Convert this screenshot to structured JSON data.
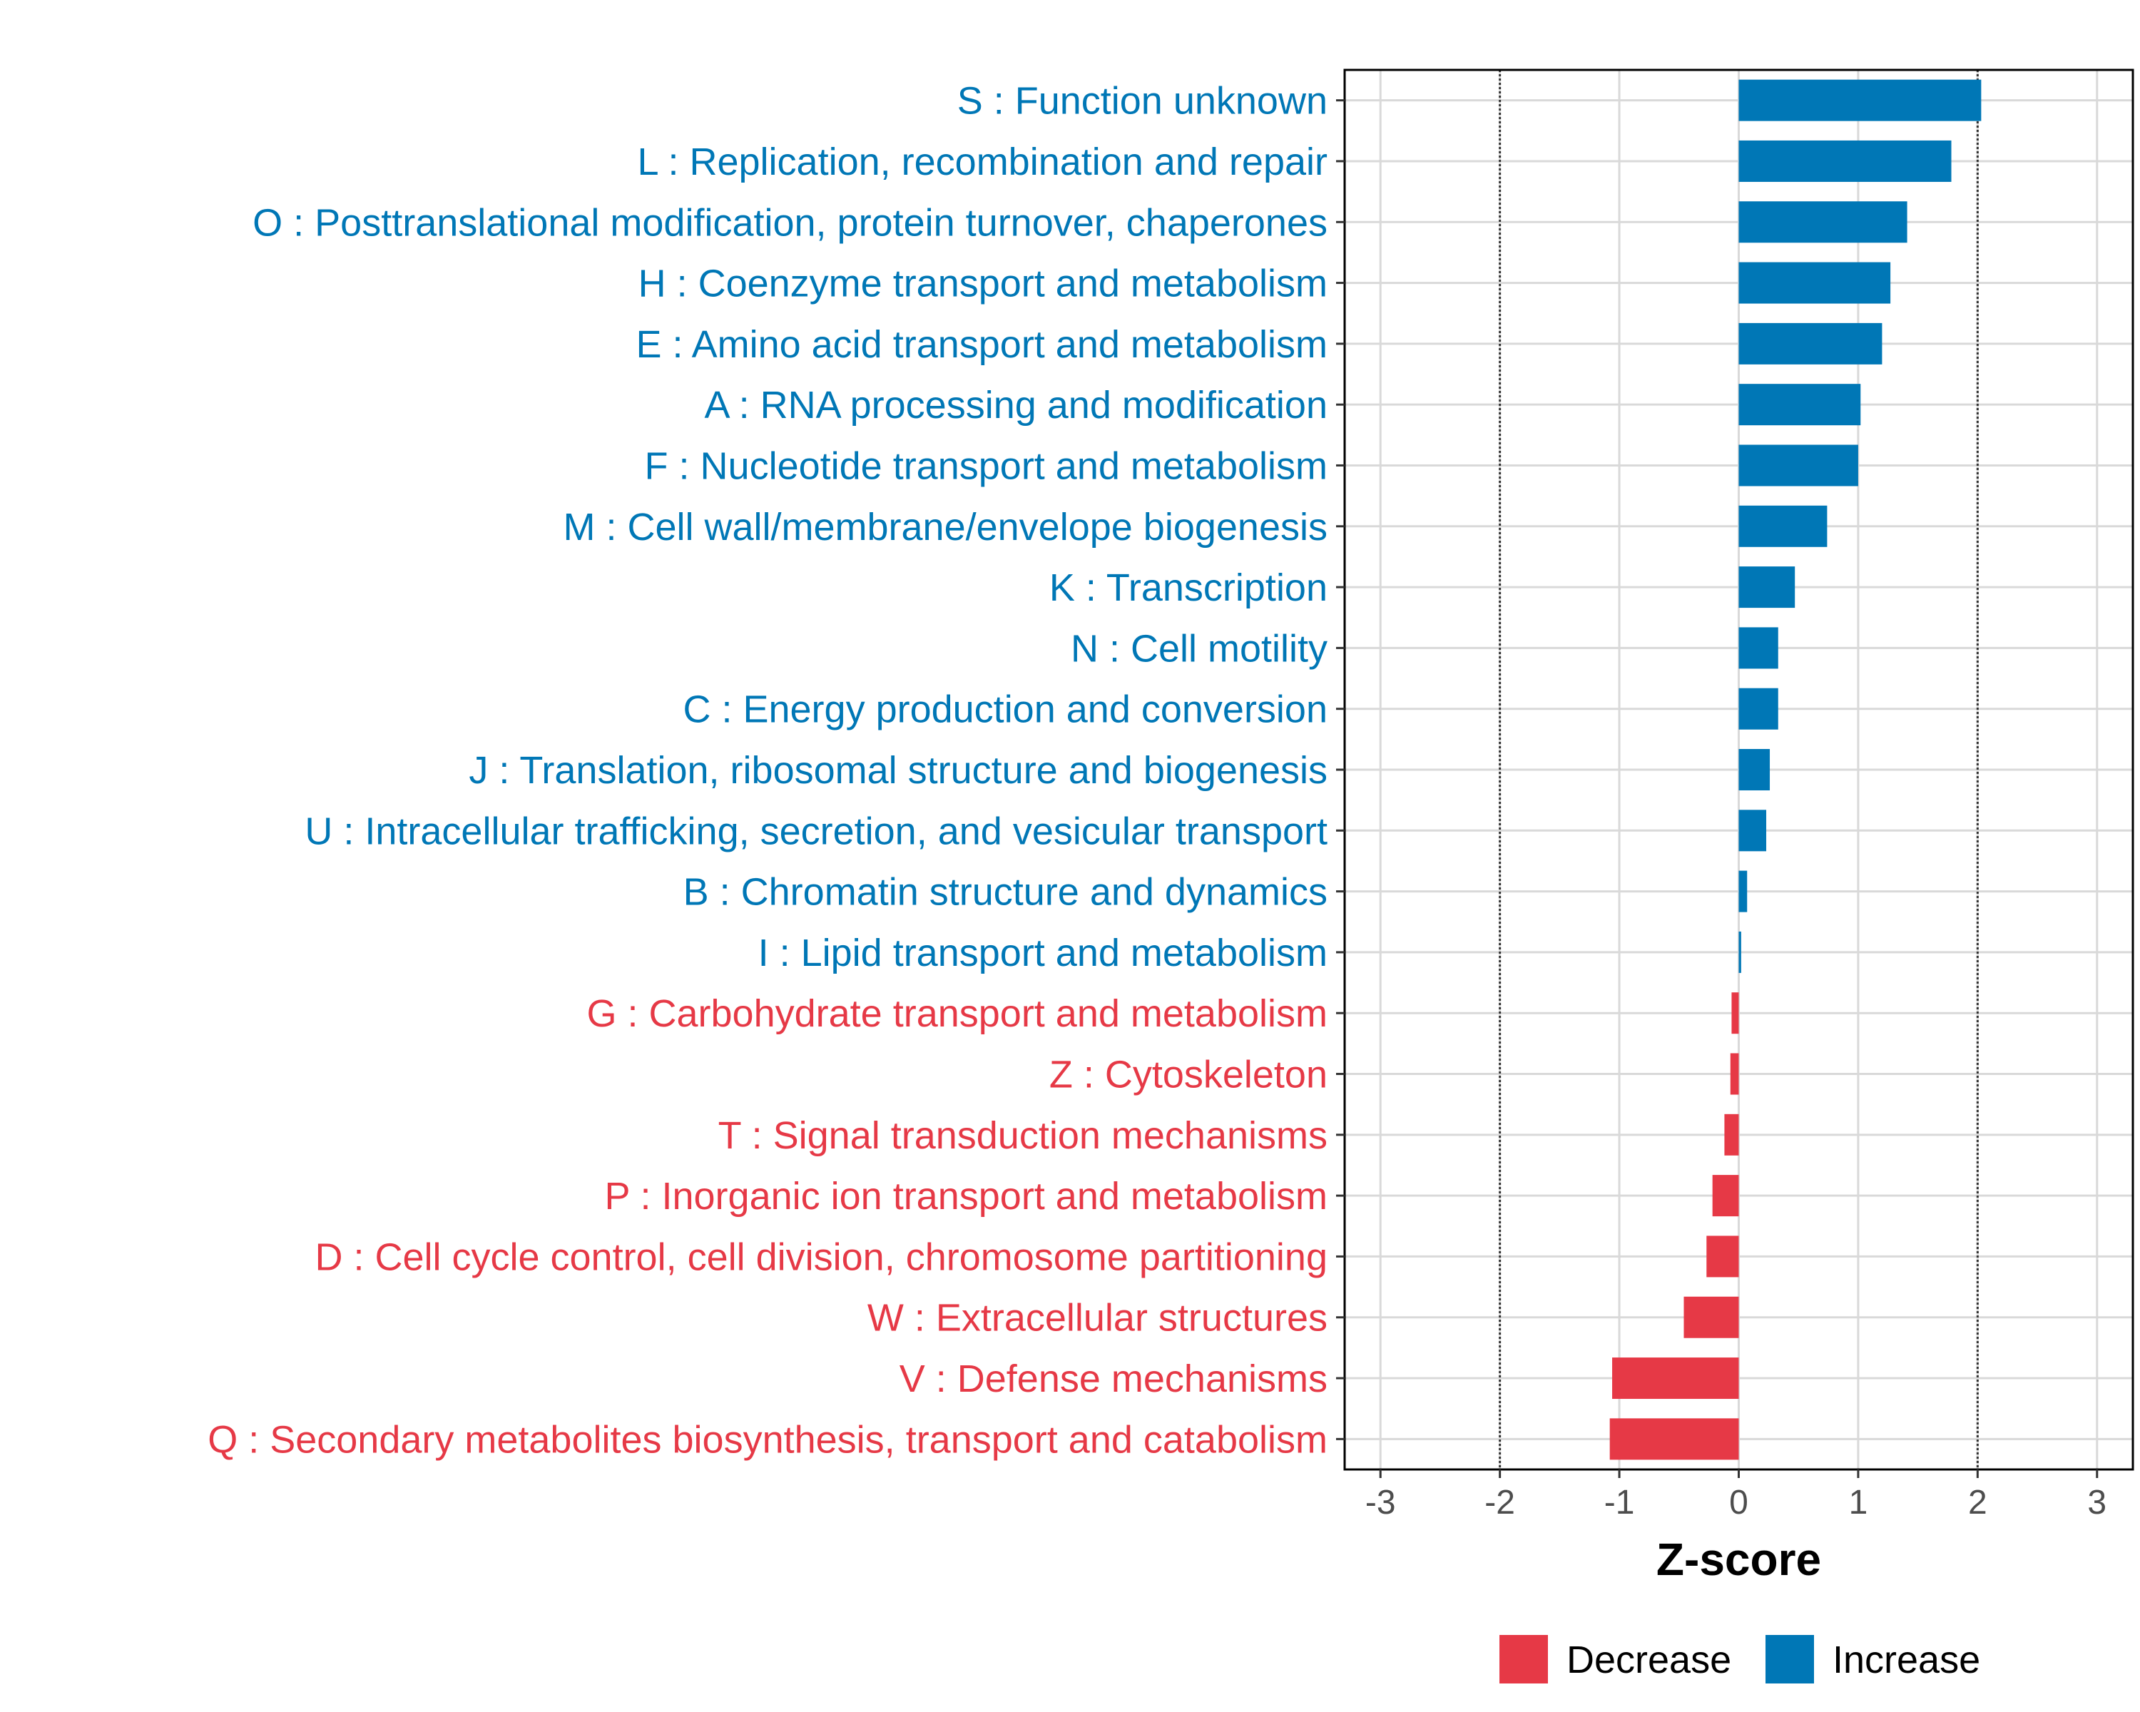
{
  "chart_data": {
    "type": "bar",
    "orientation": "horizontal",
    "xlabel": "Z-score",
    "xlim": [
      -3.3,
      3.3
    ],
    "xticks": [
      -3,
      -2,
      -1,
      0,
      1,
      2,
      3
    ],
    "xtick_labels": [
      "-3",
      "-2",
      "-1",
      "0",
      "1",
      "2",
      "3"
    ],
    "threshold_lines": [
      -2,
      2
    ],
    "grid": true,
    "colors": {
      "Decrease": "#e63946",
      "Increase": "#0077b6"
    },
    "legend": {
      "position": "bottom",
      "entries": [
        {
          "label": "Decrease",
          "color": "#e63946"
        },
        {
          "label": "Increase",
          "color": "#0077b6"
        }
      ]
    },
    "categories": [
      "S : Function unknown",
      "L : Replication, recombination and repair",
      "O : Posttranslational modification, protein turnover, chaperones",
      "H : Coenzyme transport and metabolism",
      "E : Amino acid transport and metabolism",
      "A : RNA processing and modification",
      "F : Nucleotide transport and metabolism",
      "M : Cell wall/membrane/envelope biogenesis",
      "K : Transcription",
      "N : Cell motility",
      "C : Energy production and conversion",
      "J : Translation, ribosomal structure and biogenesis",
      "U : Intracellular trafficking, secretion, and vesicular transport",
      "B : Chromatin structure and dynamics",
      "I : Lipid transport and metabolism",
      "G : Carbohydrate transport and metabolism",
      "Z : Cytoskeleton",
      "T : Signal transduction mechanisms",
      "P : Inorganic ion transport and metabolism",
      "D : Cell cycle control, cell division, chromosome partitioning",
      "W : Extracellular structures",
      "V : Defense mechanisms",
      "Q : Secondary metabolites biosynthesis, transport and catabolism"
    ],
    "values": [
      2.03,
      1.78,
      1.41,
      1.27,
      1.2,
      1.02,
      1.0,
      0.74,
      0.47,
      0.33,
      0.33,
      0.26,
      0.23,
      0.07,
      0.02,
      -0.06,
      -0.07,
      -0.12,
      -0.22,
      -0.27,
      -0.46,
      -1.06,
      -1.08
    ],
    "groups": [
      "Increase",
      "Increase",
      "Increase",
      "Increase",
      "Increase",
      "Increase",
      "Increase",
      "Increase",
      "Increase",
      "Increase",
      "Increase",
      "Increase",
      "Increase",
      "Increase",
      "Increase",
      "Decrease",
      "Decrease",
      "Decrease",
      "Decrease",
      "Decrease",
      "Decrease",
      "Decrease",
      "Decrease"
    ]
  }
}
